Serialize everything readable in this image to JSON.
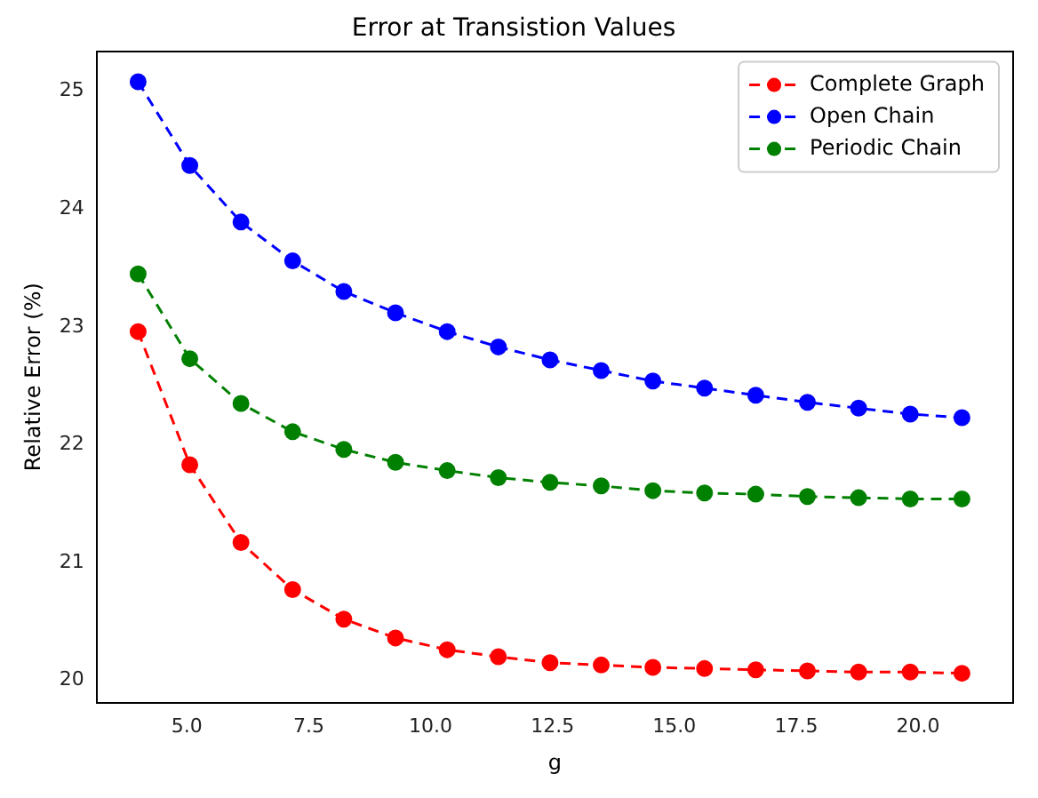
{
  "chart_data": {
    "type": "line",
    "title": "Error at Transistion Values",
    "xlabel": "g",
    "ylabel": "Relative Error (%)",
    "x": [
      4,
      5.06,
      6.11,
      7.17,
      8.22,
      9.28,
      10.34,
      11.39,
      12.45,
      13.5,
      14.56,
      15.62,
      16.67,
      17.73,
      18.78,
      19.84,
      20.9
    ],
    "series": [
      {
        "name": "Complete Graph",
        "color": "#ff0000",
        "values": [
          22.96,
          21.83,
          21.17,
          20.77,
          20.52,
          20.36,
          20.26,
          20.2,
          20.15,
          20.13,
          20.11,
          20.1,
          20.09,
          20.08,
          20.07,
          20.07,
          20.06
        ]
      },
      {
        "name": "Open Chain",
        "color": "#0000ff",
        "values": [
          25.08,
          24.37,
          23.89,
          23.56,
          23.3,
          23.12,
          22.96,
          22.83,
          22.72,
          22.63,
          22.54,
          22.48,
          22.42,
          22.36,
          22.31,
          22.26,
          22.23
        ]
      },
      {
        "name": "Periodic Chain",
        "color": "#008000",
        "values": [
          23.45,
          22.73,
          22.35,
          22.11,
          21.96,
          21.85,
          21.78,
          21.72,
          21.68,
          21.65,
          21.61,
          21.59,
          21.58,
          21.56,
          21.55,
          21.54,
          21.54
        ]
      }
    ],
    "xlim": [
      3.15,
      21.95
    ],
    "ylim": [
      19.81,
      25.34
    ],
    "xticks": [
      {
        "value": 5,
        "label": "5.0"
      },
      {
        "value": 7.5,
        "label": "7.5"
      },
      {
        "value": 10,
        "label": "10.0"
      },
      {
        "value": 12.5,
        "label": "12.5"
      },
      {
        "value": 15,
        "label": "15.0"
      },
      {
        "value": 17.5,
        "label": "17.5"
      },
      {
        "value": 20,
        "label": "20.0"
      }
    ],
    "yticks": [
      20,
      21,
      22,
      23,
      24,
      25
    ],
    "grid": false,
    "legend": "top right",
    "marker": "circle",
    "line_style": "dashed"
  }
}
